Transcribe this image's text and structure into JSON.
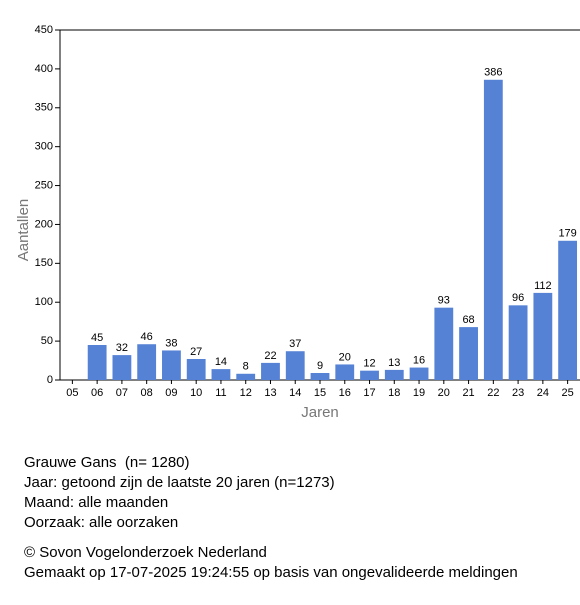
{
  "chart_data": {
    "type": "bar",
    "x_label": "Jaren",
    "y_label": "Aantallen",
    "categories": [
      "05",
      "06",
      "07",
      "08",
      "09",
      "10",
      "11",
      "12",
      "13",
      "14",
      "15",
      "16",
      "17",
      "18",
      "19",
      "20",
      "21",
      "22",
      "23",
      "24",
      "25"
    ],
    "values": [
      null,
      45,
      32,
      46,
      38,
      27,
      14,
      8,
      22,
      37,
      9,
      20,
      12,
      13,
      16,
      93,
      68,
      386,
      96,
      112,
      179
    ],
    "color": "#5682d6",
    "ylim": [
      0,
      450
    ],
    "yticks": [
      0,
      50,
      100,
      150,
      200,
      250,
      300,
      350,
      400,
      450
    ]
  },
  "footer": {
    "lines": [
      "Grauwe Gans  (n= 1280)",
      "Jaar: getoond zijn de laatste 20 jaren (n=1273)",
      "Maand: alle maanden",
      "Oorzaak: alle oorzaken"
    ],
    "credits": [
      "© Sovon Vogelonderzoek Nederland",
      "Gemaakt op 17-07-2025 19:24:55 op basis van ongevalideerde meldingen"
    ]
  }
}
